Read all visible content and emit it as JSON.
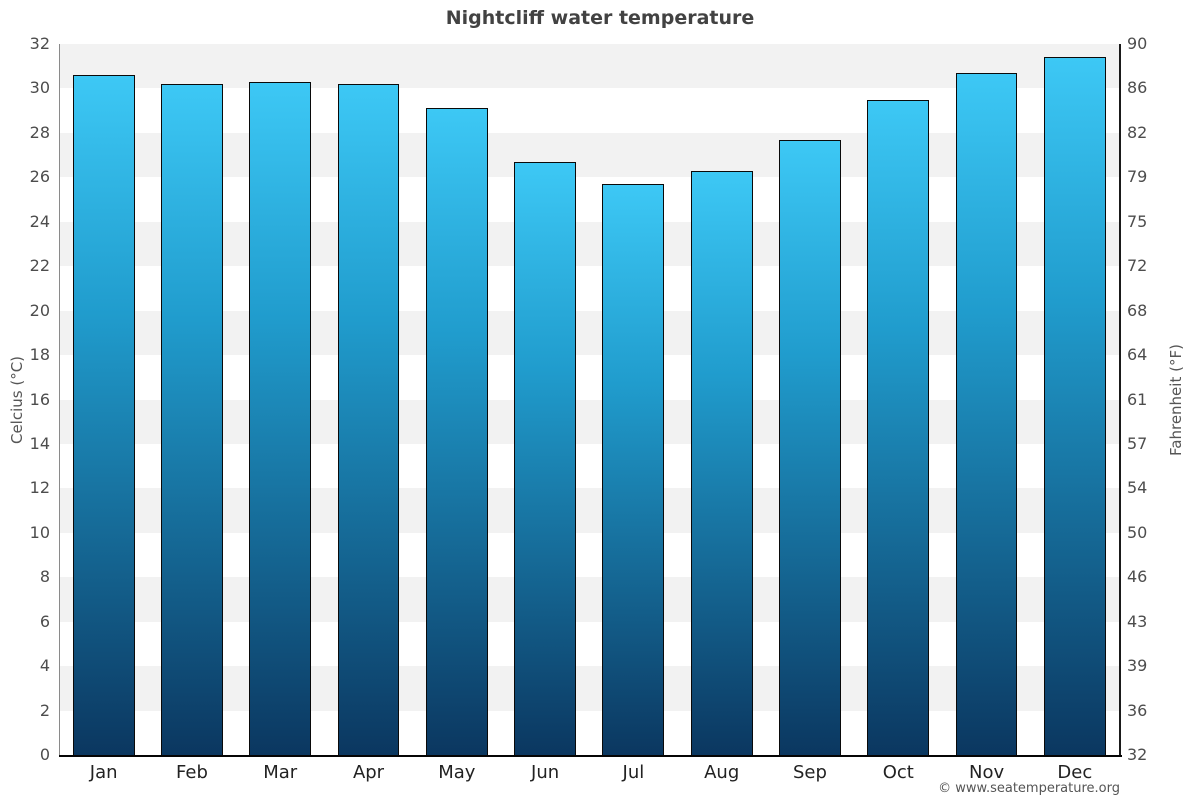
{
  "title": "Nightcliff water temperature",
  "footer": "© www.seatemperature.org",
  "chart_data": {
    "type": "bar",
    "title": "Nightcliff water temperature",
    "categories": [
      "Jan",
      "Feb",
      "Mar",
      "Apr",
      "May",
      "Jun",
      "Jul",
      "Aug",
      "Sep",
      "Oct",
      "Nov",
      "Dec"
    ],
    "values": [
      30.6,
      30.2,
      30.3,
      30.2,
      29.1,
      26.7,
      25.7,
      26.3,
      27.7,
      29.5,
      30.7,
      31.4
    ],
    "ylabel_left": "Celcius (°C)",
    "ylabel_right": "Fahrenheit (°F)",
    "ylim_celsius": [
      0,
      32
    ],
    "yticks_celsius": [
      0,
      2,
      4,
      6,
      8,
      10,
      12,
      14,
      16,
      18,
      20,
      22,
      24,
      26,
      28,
      30,
      32
    ],
    "yticks_fahrenheit": [
      32,
      36,
      39,
      43,
      46,
      50,
      54,
      57,
      61,
      64,
      68,
      72,
      75,
      79,
      82,
      86,
      90
    ],
    "grid": "alternating horizontal gray bands every 2°C",
    "band_color": "#f2f2f2",
    "bar_gradient_top": "#3dc8f5",
    "bar_gradient_bottom": "#0b3760",
    "legend": "none"
  }
}
